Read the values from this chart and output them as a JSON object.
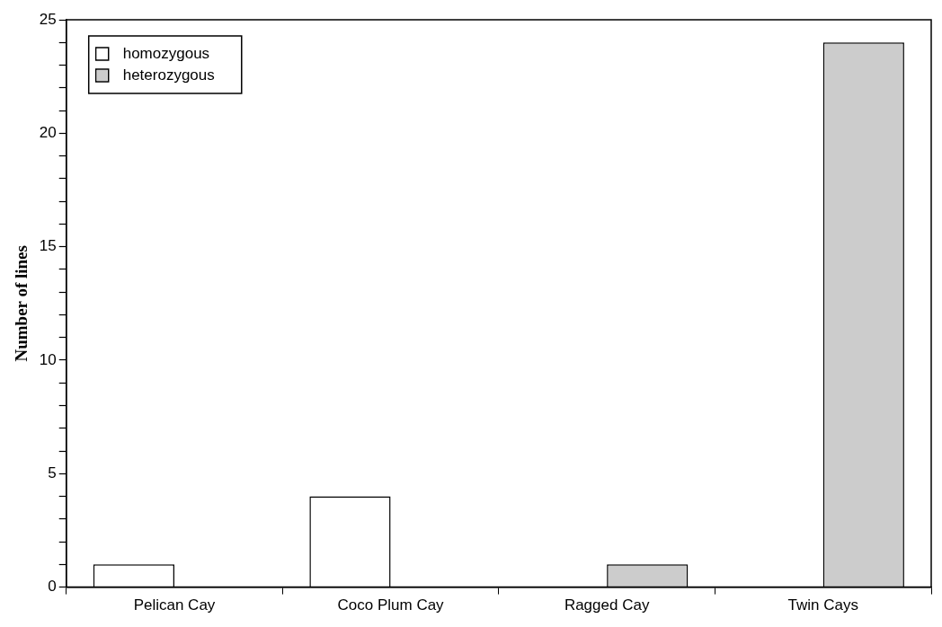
{
  "chart_data": {
    "type": "bar",
    "ylabel": "Number of lines",
    "categories": [
      "Pelican Cay",
      "Coco Plum Cay",
      "Ragged Cay",
      "Twin Cays"
    ],
    "series": [
      {
        "name": "homozygous",
        "color": "#ffffff",
        "values": [
          1,
          4,
          0,
          0
        ]
      },
      {
        "name": "heterozygous",
        "color": "#cccccc",
        "values": [
          0,
          0,
          1,
          24
        ]
      }
    ],
    "ylim": [
      0,
      25
    ],
    "yticks": [
      0,
      {
        "value": 1,
        "label": null
      },
      {
        "value": 2,
        "label": null
      },
      {
        "value": 3,
        "label": null
      },
      {
        "value": 4,
        "label": null
      },
      5,
      {
        "value": 6,
        "label": null
      },
      {
        "value": 7,
        "label": null
      },
      {
        "value": 8,
        "label": null
      },
      {
        "value": 9,
        "label": null
      },
      10,
      {
        "value": 11,
        "label": null
      },
      {
        "value": 12,
        "label": null
      },
      {
        "value": 13,
        "label": null
      },
      {
        "value": 14,
        "label": null
      },
      15,
      {
        "value": 16,
        "label": null
      },
      {
        "value": 17,
        "label": null
      },
      {
        "value": 18,
        "label": null
      },
      {
        "value": 19,
        "label": null
      },
      20,
      {
        "value": 21,
        "label": null
      },
      {
        "value": 22,
        "label": null
      },
      {
        "value": 23,
        "label": null
      },
      {
        "value": 24,
        "label": null
      },
      25
    ],
    "legend": "top left",
    "grid": false
  }
}
